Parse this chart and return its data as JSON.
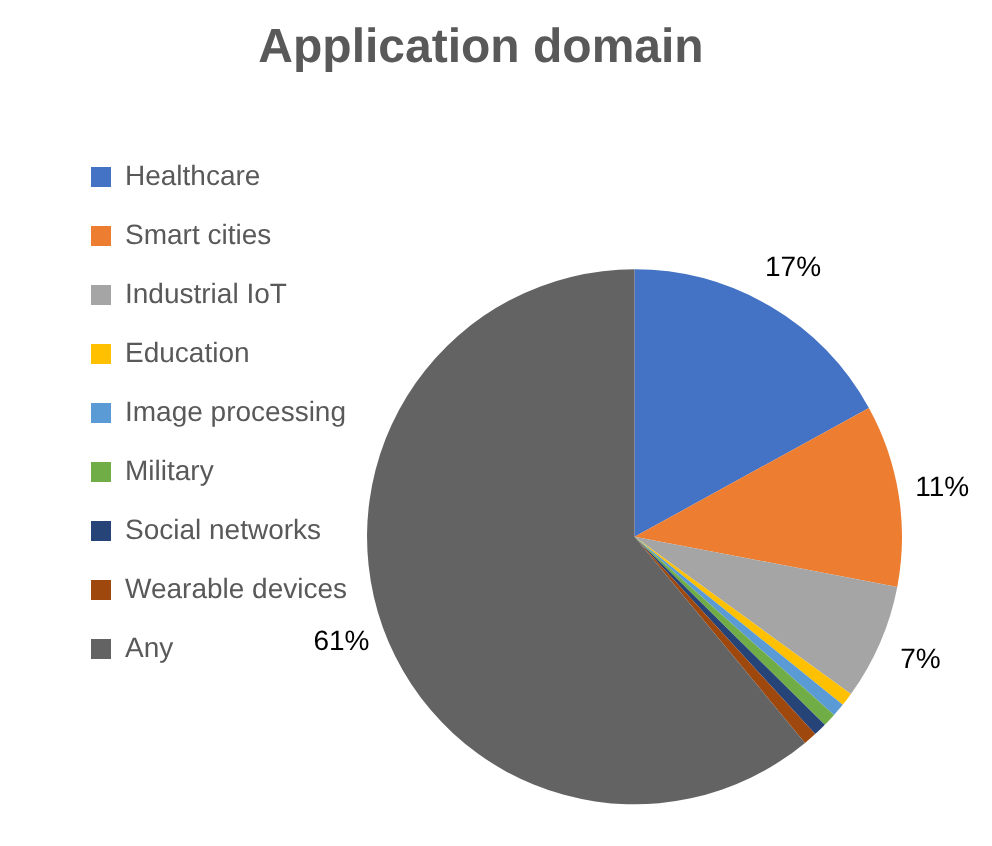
{
  "chart_data": {
    "type": "pie",
    "title": "Application domain",
    "categories": [
      "Healthcare",
      "Smart cities",
      "Industrial IoT",
      "Education",
      "Image processing",
      "Military",
      "Social networks",
      "Wearable devices",
      "Any"
    ],
    "values": [
      17,
      11,
      7,
      0.8,
      0.8,
      0.8,
      0.8,
      0.8,
      61
    ],
    "colors": [
      "#4472c4",
      "#ed7d31",
      "#a5a5a5",
      "#ffc000",
      "#5b9bd5",
      "#70ad47",
      "#264478",
      "#9e480e",
      "#636363"
    ],
    "value_labels": [
      "17%",
      "11%",
      "7%",
      null,
      null,
      null,
      null,
      null,
      "61%"
    ],
    "legend": "left"
  }
}
